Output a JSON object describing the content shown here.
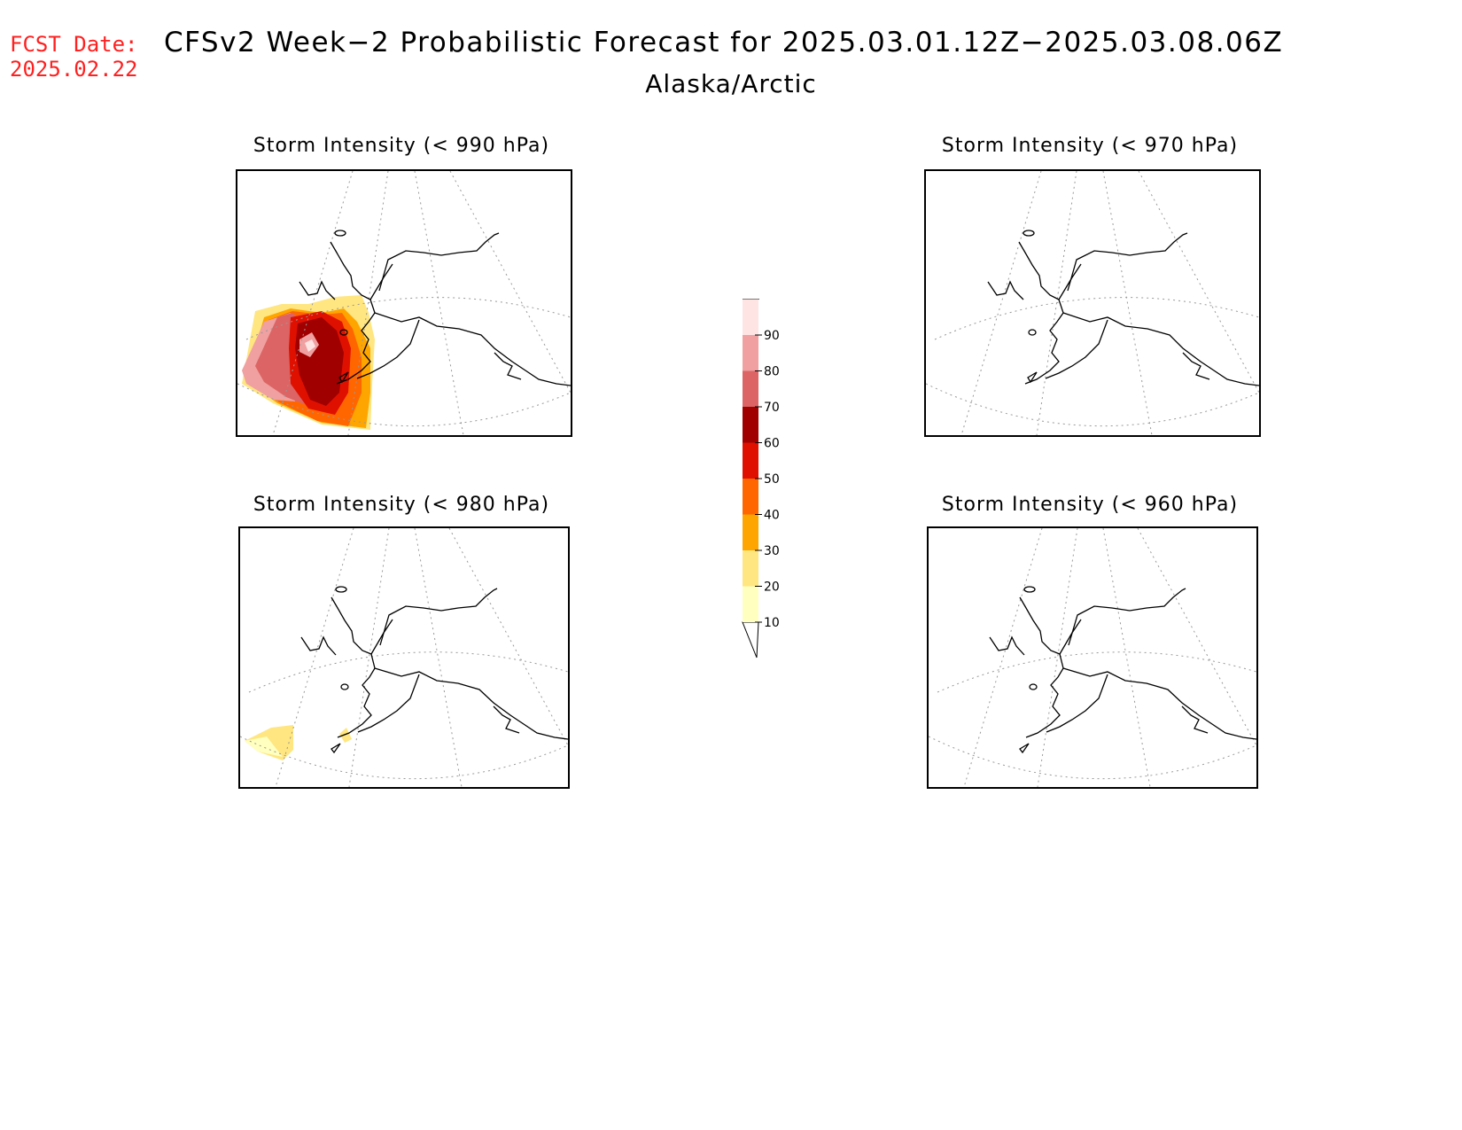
{
  "header": {
    "fcst_label": "FCST Date:",
    "fcst_date": "2025.02.22",
    "title": "CFSv2 Week−2 Probabilistic Forecast for 2025.03.01.12Z−2025.03.08.06Z",
    "subtitle": "Alaska/Arctic"
  },
  "panels": [
    {
      "title": "Storm Intensity (< 990 hPa)",
      "id": "p990"
    },
    {
      "title": "Storm Intensity (< 970 hPa)",
      "id": "p970"
    },
    {
      "title": "Storm Intensity (< 980 hPa)",
      "id": "p980"
    },
    {
      "title": "Storm Intensity (< 960 hPa)",
      "id": "p960"
    }
  ],
  "colorbar": {
    "levels": [
      "10",
      "20",
      "30",
      "40",
      "50",
      "60",
      "70",
      "80",
      "90"
    ],
    "colors": [
      "#ffffc0",
      "#ffe680",
      "#ffa500",
      "#ff6600",
      "#e01000",
      "#a00000",
      "#dc6464",
      "#f0a0a0",
      "#ffe4e4"
    ]
  }
}
